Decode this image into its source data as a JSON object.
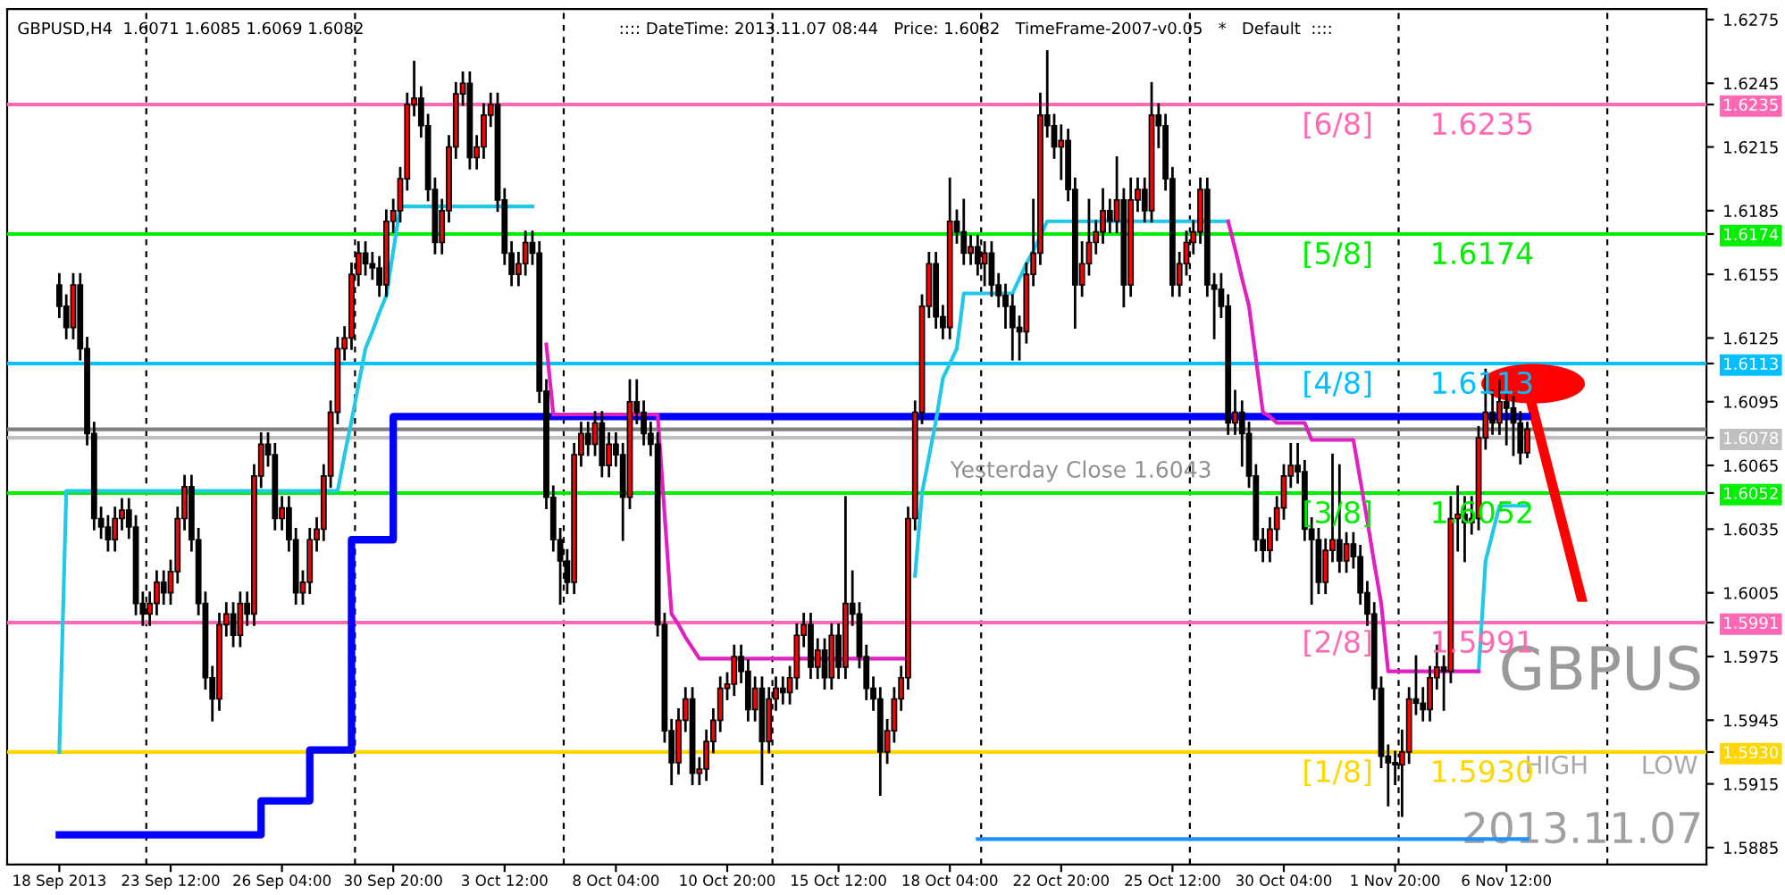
{
  "chart_data": {
    "type": "candlestick",
    "title": "GBPUSD,H4  1.6071 1.6085 1.6069 1.6082",
    "subtitle": ":::: DateTime: 2013.11.07 08:44   Price: 1.6082   TimeFrame-2007-v0.05   *   Default  ::::",
    "annotations": [
      "Yesterday Close 1.6043",
      "GBPUS",
      "HIGH",
      "LOW",
      "2013.11.07"
    ],
    "categories": [
      "18 Sep 2013",
      null,
      null,
      null,
      null,
      null,
      null,
      null,
      null,
      null,
      null,
      null,
      null,
      null,
      null,
      null,
      "23 Sep 12:00",
      null,
      null,
      null,
      null,
      null,
      null,
      null,
      null,
      null,
      null,
      null,
      null,
      null,
      null,
      null,
      "26 Sep 04:00",
      null,
      null,
      null,
      null,
      null,
      null,
      null,
      null,
      null,
      null,
      null,
      null,
      null,
      null,
      null,
      "30 Sep 20:00",
      null,
      null,
      null,
      null,
      null,
      null,
      null,
      null,
      null,
      null,
      null,
      null,
      null,
      null,
      null,
      "3 Oct 12:00",
      null,
      null,
      null,
      null,
      null,
      null,
      null,
      null,
      null,
      null,
      null,
      null,
      null,
      null,
      null,
      "8 Oct 04:00",
      null,
      null,
      null,
      null,
      null,
      null,
      null,
      null,
      null,
      null,
      null,
      null,
      null,
      null,
      null,
      "10 Oct 20:00",
      null,
      null,
      null,
      null,
      null,
      null,
      null,
      null,
      null,
      null,
      null,
      null,
      null,
      null,
      null,
      "15 Oct 12:00",
      null,
      null,
      null,
      null,
      null,
      null,
      null,
      null,
      null,
      null,
      null,
      null,
      null,
      null,
      null,
      "18 Oct 04:00",
      null,
      null,
      null,
      null,
      null,
      null,
      null,
      null,
      null,
      null,
      null,
      null,
      null,
      null,
      null,
      "22 Oct 20:00",
      null,
      null,
      null,
      null,
      null,
      null,
      null,
      null,
      null,
      null,
      null,
      null,
      null,
      null,
      null,
      "25 Oct 12:00",
      null,
      null,
      null,
      null,
      null,
      null,
      null,
      null,
      null,
      null,
      null,
      null,
      null,
      null,
      null,
      "30 Oct 04:00",
      null,
      null,
      null,
      null,
      null,
      null,
      null,
      null,
      null,
      null,
      null,
      null,
      null,
      null,
      null,
      "1 Nov 20:00",
      null,
      null,
      null,
      null,
      null,
      null,
      null,
      null,
      null,
      null,
      null,
      null,
      null,
      null,
      null,
      "6 Nov 12:00",
      null,
      null,
      null
    ],
    "colors": [
      "#000000",
      "#000000",
      "#ff0000",
      "#000000",
      "#000000",
      "#000000",
      "#000000",
      "#000000",
      "#ff0000",
      "#ff0000",
      "#000000",
      "#000000",
      "#000000",
      "#ff0000",
      "#ff0000",
      "#000000",
      "#ff0000",
      "#ff0000",
      "#ff0000",
      "#000000",
      "#000000",
      "#000000",
      "#000000",
      "#ff0000",
      "#ff0000",
      "#000000",
      "#ff0000",
      "#000000",
      "#ff0000",
      "#ff0000",
      "#000000",
      "#000000",
      "#ff0000",
      "#000000",
      "#000000",
      "#ff0000",
      "#ff0000",
      "#ff0000",
      "#ff0000",
      "#ff0000",
      "#ff0000",
      "#ff0000",
      "#ff0000",
      "#ff0000",
      "#000000",
      "#000000",
      "#000000",
      "#ff0000",
      "#ff0000",
      "#ff0000",
      "#ff0000",
      "#ff0000",
      "#000000",
      "#000000",
      "#000000",
      "#ff0000",
      "#ff0000",
      "#ff0000",
      "#ff0000",
      "#000000",
      "#ff0000",
      "#ff0000",
      "#ff0000",
      "#000000",
      "#000000",
      "#000000",
      "#ff0000",
      "#ff0000",
      "#000000",
      "#000000",
      "#000000",
      "#000000",
      "#000000",
      "#000000",
      "#ff0000",
      "#ff0000",
      "#000000",
      "#ff0000",
      "#000000",
      "#ff0000",
      "#000000",
      "#000000",
      "#ff0000",
      "#000000",
      "#000000",
      "#000000",
      "#000000",
      "#000000",
      "#000000",
      "#ff0000",
      "#ff0000",
      "#000000",
      "#ff0000",
      "#ff0000",
      "#ff0000",
      "#ff0000",
      "#ff0000",
      "#ff0000",
      "#000000",
      "#000000",
      "#ff0000",
      "#000000",
      "#ff0000",
      "#ff0000",
      "#000000",
      "#ff0000",
      "#ff0000",
      "#ff0000",
      "#000000",
      "#ff0000",
      "#000000",
      "#ff0000",
      "#000000",
      "#ff0000",
      "#000000",
      "#000000",
      "#000000",
      "#000000",
      "#000000",
      "#ff0000",
      "#ff0000",
      "#ff0000",
      "#ff0000",
      "#ff0000",
      "#ff0000",
      "#ff0000",
      "#000000",
      "#000000",
      "#ff0000",
      "#000000",
      "#000000",
      "#ff0000",
      "#000000",
      "#ff0000",
      "#000000",
      "#000000",
      "#000000",
      "#000000",
      "#000000",
      "#ff0000",
      "#ff0000",
      "#ff0000",
      "#000000",
      "#000000",
      "#ff0000",
      "#000000",
      "#000000",
      "#ff0000",
      "#ff0000",
      "#ff0000",
      "#ff0000",
      "#000000",
      "#ff0000",
      "#000000",
      "#ff0000",
      "#ff0000",
      "#000000",
      "#ff0000",
      "#000000",
      "#000000",
      "#000000",
      "#ff0000",
      "#ff0000",
      "#ff0000",
      "#ff0000",
      "#000000",
      "#000000",
      "#000000",
      "#000000",
      "#ff0000",
      "#000000",
      "#000000",
      "#000000",
      "#000000",
      "#ff0000",
      "#ff0000",
      "#ff0000",
      "#ff0000",
      "#000000",
      "#000000",
      "#000000",
      "#000000",
      "#ff0000",
      "#ff0000",
      "#000000",
      "#ff0000",
      "#000000",
      "#000000",
      "#000000",
      "#000000",
      "#000000",
      "#000000",
      "#000000",
      "#ff0000",
      "#ff0000",
      "#000000",
      "#000000",
      "#ff0000",
      "#ff0000",
      "#000000",
      "#ff0000",
      "#ff0000",
      "#000000",
      "#ff0000",
      "#ff0000",
      "#ff0000",
      "#000000",
      "#ff0000",
      "#000000",
      "#000000",
      "#000000",
      "#ff0000"
    ],
    "ohlc": [
      [
        1.615,
        1.6155,
        1.6135,
        1.614
      ],
      [
        1.614,
        1.6145,
        1.6125,
        1.613
      ],
      [
        1.613,
        1.6155,
        1.6125,
        1.615
      ],
      [
        1.615,
        1.6155,
        1.6115,
        1.612
      ],
      [
        1.612,
        1.6125,
        1.6075,
        1.608
      ],
      [
        1.608,
        1.6085,
        1.6035,
        1.604
      ],
      [
        1.604,
        1.6045,
        1.6031,
        1.6036
      ],
      [
        1.6036,
        1.6041,
        1.6025,
        1.603
      ],
      [
        1.603,
        1.6045,
        1.6025,
        1.604
      ],
      [
        1.604,
        1.6049,
        1.6035,
        1.6044
      ],
      [
        1.6044,
        1.6049,
        1.6031,
        1.6036
      ],
      [
        1.6036,
        1.6041,
        1.5995,
        1.6
      ],
      [
        1.6,
        1.6005,
        1.599,
        1.5995
      ],
      [
        1.5995,
        1.6005,
        1.599,
        1.6
      ],
      [
        1.6,
        1.6015,
        1.5995,
        1.601
      ],
      [
        1.601,
        1.6015,
        1.6,
        1.6005
      ],
      [
        1.6005,
        1.602,
        1.6,
        1.6015
      ],
      [
        1.6015,
        1.6045,
        1.601,
        1.604
      ],
      [
        1.604,
        1.606,
        1.6035,
        1.6055
      ],
      [
        1.6055,
        1.606,
        1.6025,
        1.603
      ],
      [
        1.603,
        1.6035,
        1.5995,
        1.6
      ],
      [
        1.6,
        1.6005,
        1.596,
        1.5965
      ],
      [
        1.5965,
        1.597,
        1.5945,
        1.5955
      ],
      [
        1.5955,
        1.5995,
        1.595,
        1.599
      ],
      [
        1.599,
        1.6,
        1.5985,
        1.5995
      ],
      [
        1.5995,
        1.6,
        1.598,
        1.5985
      ],
      [
        1.5985,
        1.6005,
        1.598,
        1.6
      ],
      [
        1.6,
        1.6005,
        1.599,
        1.5995
      ],
      [
        1.5995,
        1.6065,
        1.599,
        1.606
      ],
      [
        1.606,
        1.608,
        1.6055,
        1.6075
      ],
      [
        1.6075,
        1.608,
        1.6065,
        1.607
      ],
      [
        1.607,
        1.6075,
        1.6035,
        1.604
      ],
      [
        1.604,
        1.605,
        1.6035,
        1.6045
      ],
      [
        1.6045,
        1.605,
        1.6025,
        1.603
      ],
      [
        1.603,
        1.6035,
        1.6,
        1.6005
      ],
      [
        1.6005,
        1.6015,
        1.6,
        1.601
      ],
      [
        1.601,
        1.6035,
        1.6005,
        1.603
      ],
      [
        1.603,
        1.604,
        1.6025,
        1.6035
      ],
      [
        1.6035,
        1.6065,
        1.603,
        1.606
      ],
      [
        1.606,
        1.6095,
        1.6055,
        1.609
      ],
      [
        1.609,
        1.6125,
        1.6085,
        1.612
      ],
      [
        1.612,
        1.613,
        1.6115,
        1.6125
      ],
      [
        1.6125,
        1.616,
        1.612,
        1.6155
      ],
      [
        1.6155,
        1.617,
        1.615,
        1.6165
      ],
      [
        1.6165,
        1.617,
        1.6155,
        1.616
      ],
      [
        1.616,
        1.6165,
        1.6153,
        1.6158
      ],
      [
        1.6158,
        1.6163,
        1.6145,
        1.615
      ],
      [
        1.615,
        1.6185,
        1.6145,
        1.618
      ],
      [
        1.618,
        1.619,
        1.6175,
        1.6185
      ],
      [
        1.6185,
        1.6205,
        1.618,
        1.62
      ],
      [
        1.62,
        1.624,
        1.6195,
        1.6235
      ],
      [
        1.6235,
        1.6255,
        1.623,
        1.6238
      ],
      [
        1.6238,
        1.6243,
        1.622,
        1.6225
      ],
      [
        1.6225,
        1.623,
        1.619,
        1.6195
      ],
      [
        1.6195,
        1.62,
        1.6165,
        1.617
      ],
      [
        1.617,
        1.619,
        1.6165,
        1.6185
      ],
      [
        1.6185,
        1.622,
        1.618,
        1.6215
      ],
      [
        1.6215,
        1.6245,
        1.621,
        1.624
      ],
      [
        1.624,
        1.625,
        1.6235,
        1.6245
      ],
      [
        1.6245,
        1.625,
        1.6205,
        1.621
      ],
      [
        1.621,
        1.622,
        1.6205,
        1.6215
      ],
      [
        1.6215,
        1.6235,
        1.621,
        1.623
      ],
      [
        1.623,
        1.624,
        1.6225,
        1.6235
      ],
      [
        1.6235,
        1.624,
        1.6185,
        1.619
      ],
      [
        1.619,
        1.6195,
        1.616,
        1.6165
      ],
      [
        1.6165,
        1.617,
        1.615,
        1.6155
      ],
      [
        1.6155,
        1.6165,
        1.615,
        1.616
      ],
      [
        1.616,
        1.6175,
        1.6155,
        1.617
      ],
      [
        1.617,
        1.6175,
        1.616,
        1.6165
      ],
      [
        1.6165,
        1.617,
        1.6095,
        1.61
      ],
      [
        1.61,
        1.6105,
        1.6045,
        1.605
      ],
      [
        1.605,
        1.6055,
        1.6025,
        1.603
      ],
      [
        1.603,
        1.6035,
        1.6,
        1.602
      ],
      [
        1.602,
        1.6025,
        1.6005,
        1.601
      ],
      [
        1.601,
        1.6075,
        1.6005,
        1.607
      ],
      [
        1.607,
        1.6085,
        1.6065,
        1.608
      ],
      [
        1.608,
        1.6085,
        1.607,
        1.6075
      ],
      [
        1.6075,
        1.609,
        1.607,
        1.6085
      ],
      [
        1.6085,
        1.609,
        1.606,
        1.6065
      ],
      [
        1.6065,
        1.608,
        1.606,
        1.6075
      ],
      [
        1.6075,
        1.608,
        1.6065,
        1.607
      ],
      [
        1.607,
        1.6075,
        1.603,
        1.605
      ],
      [
        1.605,
        1.6105,
        1.6045,
        1.6095
      ],
      [
        1.6095,
        1.6105,
        1.6085,
        1.609
      ],
      [
        1.609,
        1.6095,
        1.6075,
        1.608
      ],
      [
        1.608,
        1.6085,
        1.607,
        1.6075
      ],
      [
        1.6075,
        1.608,
        1.5985,
        1.599
      ],
      [
        1.599,
        1.5995,
        1.5935,
        1.594
      ],
      [
        1.594,
        1.5945,
        1.5915,
        1.5925
      ],
      [
        1.5925,
        1.595,
        1.592,
        1.5945
      ],
      [
        1.5945,
        1.596,
        1.594,
        1.5955
      ],
      [
        1.5955,
        1.596,
        1.5915,
        1.592
      ],
      [
        1.592,
        1.5927,
        1.5915,
        1.5922
      ],
      [
        1.5922,
        1.594,
        1.5917,
        1.5935
      ],
      [
        1.5935,
        1.595,
        1.593,
        1.5945
      ],
      [
        1.5945,
        1.5965,
        1.594,
        1.596
      ],
      [
        1.596,
        1.5967,
        1.5955,
        1.5962
      ],
      [
        1.5962,
        1.598,
        1.5957,
        1.5975
      ],
      [
        1.5975,
        1.598,
        1.5963,
        1.5968
      ],
      [
        1.5968,
        1.5973,
        1.5945,
        1.595
      ],
      [
        1.595,
        1.5965,
        1.5945,
        1.596
      ],
      [
        1.596,
        1.5965,
        1.5915,
        1.5935
      ],
      [
        1.5935,
        1.596,
        1.593,
        1.5955
      ],
      [
        1.5955,
        1.5965,
        1.595,
        1.596
      ],
      [
        1.596,
        1.5965,
        1.5953,
        1.5958
      ],
      [
        1.5958,
        1.597,
        1.5953,
        1.5965
      ],
      [
        1.5965,
        1.599,
        1.596,
        1.5985
      ],
      [
        1.5985,
        1.5995,
        1.598,
        1.599
      ],
      [
        1.599,
        1.5995,
        1.5965,
        1.597
      ],
      [
        1.597,
        1.5983,
        1.5965,
        1.5978
      ],
      [
        1.5978,
        1.5983,
        1.596,
        1.5965
      ],
      [
        1.5965,
        1.599,
        1.596,
        1.5985
      ],
      [
        1.5985,
        1.599,
        1.5965,
        1.597
      ],
      [
        1.597,
        1.605,
        1.5965,
        1.6
      ],
      [
        1.6,
        1.6015,
        1.599,
        1.5995
      ],
      [
        1.5995,
        1.6,
        1.597,
        1.5975
      ],
      [
        1.5975,
        1.598,
        1.5955,
        1.596
      ],
      [
        1.596,
        1.5965,
        1.595,
        1.5955
      ],
      [
        1.5955,
        1.596,
        1.591,
        1.593
      ],
      [
        1.593,
        1.5945,
        1.5925,
        1.594
      ],
      [
        1.594,
        1.596,
        1.5935,
        1.5955
      ],
      [
        1.5955,
        1.597,
        1.595,
        1.5965
      ],
      [
        1.5965,
        1.6045,
        1.596,
        1.604
      ],
      [
        1.604,
        1.6095,
        1.6035,
        1.609
      ],
      [
        1.609,
        1.6145,
        1.6085,
        1.614
      ],
      [
        1.614,
        1.6165,
        1.6135,
        1.616
      ],
      [
        1.616,
        1.6165,
        1.613,
        1.6135
      ],
      [
        1.6135,
        1.614,
        1.6125,
        1.613
      ],
      [
        1.613,
        1.62,
        1.6125,
        1.618
      ],
      [
        1.618,
        1.6185,
        1.617,
        1.6175
      ],
      [
        1.6175,
        1.619,
        1.616,
        1.6165
      ],
      [
        1.6165,
        1.6173,
        1.616,
        1.6168
      ],
      [
        1.6168,
        1.6173,
        1.6155,
        1.616
      ],
      [
        1.616,
        1.617,
        1.615,
        1.6165
      ],
      [
        1.6165,
        1.617,
        1.6145,
        1.615
      ],
      [
        1.615,
        1.6155,
        1.614,
        1.6145
      ],
      [
        1.6145,
        1.615,
        1.613,
        1.614
      ],
      [
        1.614,
        1.6145,
        1.6115,
        1.613
      ],
      [
        1.613,
        1.6135,
        1.6115,
        1.6128
      ],
      [
        1.6128,
        1.616,
        1.6123,
        1.6155
      ],
      [
        1.6155,
        1.619,
        1.615,
        1.6165
      ],
      [
        1.6165,
        1.624,
        1.616,
        1.623
      ],
      [
        1.623,
        1.626,
        1.622,
        1.6225
      ],
      [
        1.6225,
        1.623,
        1.621,
        1.6215
      ],
      [
        1.6215,
        1.6225,
        1.62,
        1.6218
      ],
      [
        1.6218,
        1.6223,
        1.619,
        1.6195
      ],
      [
        1.6195,
        1.62,
        1.613,
        1.615
      ],
      [
        1.615,
        1.617,
        1.6145,
        1.616
      ],
      [
        1.616,
        1.619,
        1.6155,
        1.617
      ],
      [
        1.617,
        1.618,
        1.6165,
        1.6175
      ],
      [
        1.6175,
        1.6195,
        1.617,
        1.6185
      ],
      [
        1.6185,
        1.619,
        1.6175,
        1.618
      ],
      [
        1.618,
        1.621,
        1.6175,
        1.619
      ],
      [
        1.619,
        1.6195,
        1.614,
        1.615
      ],
      [
        1.615,
        1.62,
        1.6145,
        1.619
      ],
      [
        1.619,
        1.62,
        1.6185,
        1.6195
      ],
      [
        1.6195,
        1.62,
        1.618,
        1.6185
      ],
      [
        1.6185,
        1.6245,
        1.618,
        1.623
      ],
      [
        1.623,
        1.6235,
        1.6215,
        1.6225
      ],
      [
        1.6225,
        1.623,
        1.6195,
        1.62
      ],
      [
        1.62,
        1.6205,
        1.6145,
        1.615
      ],
      [
        1.615,
        1.6165,
        1.6145,
        1.616
      ],
      [
        1.616,
        1.6175,
        1.6155,
        1.617
      ],
      [
        1.617,
        1.618,
        1.6165,
        1.6175
      ],
      [
        1.6175,
        1.62,
        1.617,
        1.6195
      ],
      [
        1.6195,
        1.62,
        1.6145,
        1.615
      ],
      [
        1.615,
        1.6155,
        1.6125,
        1.6148
      ],
      [
        1.6148,
        1.6155,
        1.6135,
        1.614
      ],
      [
        1.614,
        1.6145,
        1.608,
        1.6085
      ],
      [
        1.6085,
        1.61,
        1.608,
        1.609
      ],
      [
        1.609,
        1.6095,
        1.6065,
        1.608
      ],
      [
        1.608,
        1.6085,
        1.6055,
        1.606
      ],
      [
        1.606,
        1.6065,
        1.6025,
        1.603
      ],
      [
        1.603,
        1.6035,
        1.602,
        1.6025
      ],
      [
        1.6025,
        1.604,
        1.602,
        1.6035
      ],
      [
        1.6035,
        1.605,
        1.603,
        1.6045
      ],
      [
        1.6045,
        1.6065,
        1.604,
        1.606
      ],
      [
        1.606,
        1.6075,
        1.6055,
        1.6065
      ],
      [
        1.6065,
        1.6075,
        1.6057,
        1.6062
      ],
      [
        1.6062,
        1.6067,
        1.603,
        1.6035
      ],
      [
        1.6035,
        1.604,
        1.6,
        1.603
      ],
      [
        1.603,
        1.6035,
        1.6005,
        1.601
      ],
      [
        1.601,
        1.603,
        1.6005,
        1.6025
      ],
      [
        1.6025,
        1.607,
        1.602,
        1.603
      ],
      [
        1.603,
        1.6065,
        1.6015,
        1.602
      ],
      [
        1.602,
        1.6033,
        1.6015,
        1.6028
      ],
      [
        1.6028,
        1.6033,
        1.6017,
        1.6022
      ],
      [
        1.6022,
        1.6027,
        1.6,
        1.6005
      ],
      [
        1.6005,
        1.601,
        1.599,
        1.5995
      ],
      [
        1.5995,
        1.6,
        1.5955,
        1.596
      ],
      [
        1.596,
        1.5965,
        1.5923,
        1.5928
      ],
      [
        1.5928,
        1.5933,
        1.5905,
        1.5925
      ],
      [
        1.5925,
        1.593,
        1.5915,
        1.5924
      ],
      [
        1.5924,
        1.594,
        1.59,
        1.593
      ],
      [
        1.593,
        1.596,
        1.5925,
        1.5955
      ],
      [
        1.5955,
        1.5975,
        1.5948,
        1.5953
      ],
      [
        1.5953,
        1.596,
        1.5945,
        1.595
      ],
      [
        1.595,
        1.597,
        1.5945,
        1.5965
      ],
      [
        1.5965,
        1.598,
        1.596,
        1.597
      ],
      [
        1.597,
        1.5975,
        1.595,
        1.5968
      ],
      [
        1.5968,
        1.605,
        1.5963,
        1.604
      ],
      [
        1.604,
        1.6055,
        1.6025,
        1.6042
      ],
      [
        1.6042,
        1.605,
        1.602,
        1.6038
      ],
      [
        1.6038,
        1.605,
        1.6033,
        1.604
      ],
      [
        1.604,
        1.6083,
        1.6035,
        1.6078
      ],
      [
        1.6078,
        1.611,
        1.6073,
        1.609
      ],
      [
        1.609,
        1.61,
        1.608,
        1.6085
      ],
      [
        1.6085,
        1.6105,
        1.608,
        1.6095
      ],
      [
        1.6095,
        1.61,
        1.6075,
        1.6092
      ],
      [
        1.6092,
        1.6097,
        1.607,
        1.6085
      ],
      [
        1.6085,
        1.609,
        1.6066,
        1.6071
      ],
      [
        1.6071,
        1.6085,
        1.6069,
        1.6082
      ]
    ],
    "series": [
      {
        "type": "step",
        "color": "#0000ff",
        "values": [
          1.5891,
          1.5891,
          1.5891,
          1.5891,
          1.5891,
          1.5891,
          1.5891,
          1.5891,
          1.5891,
          1.5891,
          1.5891,
          1.5891,
          1.5891,
          1.5891,
          1.5891,
          1.5891,
          1.5891,
          1.5891,
          1.5891,
          1.5891,
          1.5891,
          1.5891,
          1.5891,
          1.5891,
          1.5891,
          1.5891,
          1.5891,
          1.5891,
          1.5891,
          1.5907,
          1.5907,
          1.5907,
          1.5907,
          1.5907,
          1.5907,
          1.5907,
          1.5931,
          1.5931,
          1.5931,
          1.5931,
          1.5931,
          1.5931,
          1.603,
          1.603,
          1.603,
          1.603,
          1.603,
          1.603,
          1.6088,
          1.6088,
          1.6088,
          1.6088,
          1.6088,
          1.6088,
          1.6088,
          1.6088,
          1.6088,
          1.6088,
          1.6088,
          1.6088,
          1.6088,
          1.6088,
          1.6088,
          1.6088,
          1.6088,
          1.6088,
          1.6088,
          1.6088,
          1.6088,
          1.6088,
          1.6088,
          1.6088,
          1.6088,
          1.6088,
          1.6088,
          1.6088,
          1.6088,
          1.6088,
          1.6088,
          1.6088,
          1.6088,
          1.6088,
          1.6088,
          1.6088,
          1.6088,
          1.6088,
          1.6088,
          1.6088,
          1.6088,
          1.6088,
          1.6088,
          1.6088,
          1.6088,
          1.6088,
          1.6088,
          1.6088,
          1.6088,
          1.6088,
          1.6088,
          1.6088,
          1.6088,
          1.6088,
          1.6088,
          1.6088,
          1.6088,
          1.6088,
          1.6088,
          1.6088,
          1.6088,
          1.6088,
          1.6088,
          1.6088,
          1.6088,
          1.6088,
          1.6088,
          1.6088,
          1.6088,
          1.6088,
          1.6088,
          1.6088,
          1.6088,
          1.6088,
          1.6088,
          1.6088,
          1.6088,
          1.6088,
          1.6088,
          1.6088,
          1.6088,
          1.6088,
          1.6088,
          1.6088,
          1.6088,
          1.6088,
          1.6088,
          1.6088,
          1.6088,
          1.6088,
          1.6088,
          1.6088,
          1.6088,
          1.6088,
          1.6088,
          1.6088,
          1.6088,
          1.6088,
          1.6088,
          1.6088,
          1.6088,
          1.6088,
          1.6088,
          1.6088,
          1.6088,
          1.6088,
          1.6088,
          1.6088,
          1.6088,
          1.6088,
          1.6088,
          1.6088,
          1.6088,
          1.6088,
          1.6088,
          1.6088,
          1.6088,
          1.6088,
          1.6088,
          1.6088,
          1.6088,
          1.6088,
          1.6088,
          1.6088,
          1.6088,
          1.6088,
          1.6088,
          1.6088,
          1.6088,
          1.6088,
          1.6088,
          1.6088,
          1.6088,
          1.6088,
          1.6088,
          1.6088,
          1.6088,
          1.6088,
          1.6088,
          1.6088,
          1.6088,
          1.6088,
          1.6088,
          1.6088,
          1.6088,
          1.6088,
          1.6088,
          1.6088,
          1.6088,
          1.6088,
          1.6088,
          1.6088,
          1.6088,
          1.6088,
          1.6088,
          1.6088,
          1.6088,
          1.6088,
          1.6088,
          1.6088,
          1.6088,
          1.6088,
          1.6088,
          1.6088
        ]
      },
      {
        "type": "line",
        "color": "#22c8e8",
        "values": [
          1.593,
          1.6053,
          1.6053,
          1.6053,
          1.6053,
          1.6053,
          1.6053,
          1.6053,
          1.6053,
          1.6053,
          1.6053,
          1.6053,
          1.6053,
          1.6053,
          1.6053,
          1.6053,
          1.6053,
          1.6053,
          1.6053,
          1.6053,
          1.6053,
          1.6053,
          1.6053,
          1.6053,
          1.6053,
          1.6053,
          1.6053,
          1.6053,
          1.6053,
          1.6053,
          1.6053,
          1.6053,
          1.6053,
          1.6053,
          1.6053,
          1.6053,
          1.6053,
          1.6053,
          1.6053,
          1.6053,
          1.6053,
          1.607,
          1.6086,
          1.6103,
          1.612,
          1.6128,
          1.6137,
          1.6145,
          1.6166,
          1.6187,
          1.6187,
          1.6187,
          1.6187,
          1.6187,
          1.6187,
          1.6187,
          1.6187,
          1.6187,
          1.6187,
          1.6187,
          1.6187,
          1.6187,
          1.6187,
          1.6187,
          1.6187,
          1.6187,
          1.6187,
          1.6187,
          1.6187,
          null,
          null,
          null,
          null,
          null,
          null,
          null,
          null,
          null,
          null,
          null,
          null,
          null,
          null,
          null,
          null,
          null,
          null,
          null,
          null,
          null,
          null,
          null,
          null,
          null,
          null,
          null,
          null,
          null,
          null,
          null,
          null,
          null,
          null,
          null,
          null,
          null,
          null,
          null,
          null,
          null,
          null,
          null,
          null,
          null,
          null,
          null,
          null,
          null,
          null,
          null,
          null,
          null,
          null,
          1.6013,
          1.6052,
          1.6069,
          1.6086,
          1.6106,
          1.6113,
          1.612,
          1.6146,
          1.6146,
          1.6146,
          1.6146,
          1.6146,
          1.6146,
          1.6146,
          1.6146,
          1.6153,
          1.616,
          1.6166,
          1.6173,
          1.618,
          1.618,
          1.618,
          1.618,
          1.618,
          1.618,
          1.618,
          1.618,
          1.618,
          1.618,
          1.618,
          1.618,
          1.618,
          1.618,
          1.618,
          1.618,
          1.618,
          1.618,
          1.618,
          1.618,
          1.618,
          1.618,
          1.618,
          1.618,
          1.618,
          1.618,
          1.618,
          null,
          null,
          null,
          null,
          null,
          null,
          null,
          null,
          null,
          null,
          null,
          null,
          null,
          null,
          null,
          null,
          null,
          null,
          null,
          null,
          null,
          null,
          null,
          null,
          null,
          null,
          null,
          null,
          null,
          null,
          null,
          null,
          null,
          null,
          null,
          1.5968,
          1.602,
          1.6033,
          1.6046,
          1.6046,
          1.6046,
          1.6046,
          1.6046
        ]
      },
      {
        "type": "line",
        "color": "#e020c0",
        "values": [
          null,
          null,
          null,
          null,
          null,
          null,
          null,
          null,
          null,
          null,
          null,
          null,
          null,
          null,
          null,
          null,
          null,
          null,
          null,
          null,
          null,
          null,
          null,
          null,
          null,
          null,
          null,
          null,
          null,
          null,
          null,
          null,
          null,
          null,
          null,
          null,
          null,
          null,
          null,
          null,
          null,
          null,
          null,
          null,
          null,
          null,
          null,
          null,
          null,
          null,
          null,
          null,
          null,
          null,
          null,
          null,
          null,
          null,
          null,
          null,
          null,
          null,
          null,
          null,
          null,
          null,
          null,
          null,
          null,
          null,
          1.6122,
          1.6089,
          1.6089,
          1.6089,
          1.6089,
          1.6089,
          1.6089,
          1.6089,
          1.6089,
          1.6089,
          1.6089,
          1.6089,
          1.6089,
          1.6089,
          1.6089,
          1.6089,
          1.6089,
          1.6042,
          1.5995,
          1.599,
          1.5984,
          1.5979,
          1.5974,
          1.5974,
          1.5974,
          1.5974,
          1.5974,
          1.5974,
          1.5974,
          1.5974,
          1.5974,
          1.5974,
          1.5974,
          1.5974,
          1.5974,
          1.5974,
          1.5974,
          1.5974,
          1.5974,
          1.5974,
          1.5974,
          1.5974,
          1.5974,
          1.5974,
          1.5974,
          1.5974,
          1.5974,
          1.5974,
          1.5974,
          1.5974,
          1.5974,
          1.5974,
          1.5974,
          null,
          null,
          null,
          null,
          null,
          null,
          null,
          null,
          null,
          null,
          null,
          null,
          null,
          null,
          null,
          null,
          null,
          null,
          null,
          null,
          null,
          null,
          null,
          null,
          null,
          null,
          null,
          null,
          null,
          null,
          null,
          null,
          null,
          null,
          null,
          null,
          null,
          null,
          null,
          null,
          null,
          null,
          null,
          null,
          null,
          1.618,
          1.6167,
          1.6153,
          1.614,
          1.6115,
          1.609,
          1.6088,
          1.6085,
          1.6085,
          1.6085,
          1.6085,
          1.6085,
          1.6077,
          1.6077,
          1.6077,
          1.6077,
          1.6077,
          1.6077,
          1.6077,
          1.6058,
          1.6039,
          1.6019,
          1.6,
          1.5968,
          1.5968,
          1.5968,
          1.5968,
          1.5968,
          1.5968,
          1.5968,
          1.5968,
          1.5968,
          1.5968,
          1.5968,
          1.5968,
          1.5968,
          1.5968,
          null,
          null,
          null,
          null,
          null,
          null,
          null
        ]
      },
      {
        "type": "line",
        "color": "#1e90ff",
        "values": [
          null,
          null,
          null,
          null,
          null,
          null,
          null,
          null,
          null,
          null,
          null,
          null,
          null,
          null,
          null,
          null,
          null,
          null,
          null,
          null,
          null,
          null,
          null,
          null,
          null,
          null,
          null,
          null,
          null,
          null,
          null,
          null,
          null,
          null,
          null,
          null,
          null,
          null,
          null,
          null,
          null,
          null,
          null,
          null,
          null,
          null,
          null,
          null,
          null,
          null,
          null,
          null,
          null,
          null,
          null,
          null,
          null,
          null,
          null,
          null,
          null,
          null,
          null,
          null,
          null,
          null,
          null,
          null,
          null,
          null,
          null,
          null,
          null,
          null,
          null,
          null,
          null,
          null,
          null,
          null,
          null,
          null,
          null,
          null,
          null,
          null,
          null,
          null,
          null,
          null,
          null,
          null,
          null,
          null,
          null,
          null,
          null,
          null,
          null,
          null,
          null,
          null,
          null,
          null,
          null,
          null,
          null,
          null,
          null,
          null,
          null,
          null,
          null,
          null,
          null,
          null,
          null,
          null,
          null,
          null,
          null,
          null,
          null,
          null,
          null,
          null,
          null,
          null,
          null,
          null,
          null,
          null,
          1.5889,
          1.5889,
          1.5889,
          1.5889,
          1.5889,
          1.5889,
          1.5889,
          1.5889,
          1.5889,
          1.5889,
          1.5889,
          1.5889,
          1.5889,
          1.5889,
          1.5889,
          1.5889,
          1.5889,
          1.5889,
          1.5889,
          1.5889,
          1.5889,
          1.5889,
          1.5889,
          1.5889,
          1.5889,
          1.5889,
          1.5889,
          1.5889,
          1.5889,
          1.5889,
          1.5889,
          1.5889,
          1.5889,
          1.5889,
          1.5889,
          1.5889,
          1.5889,
          1.5889,
          1.5889,
          1.5889,
          1.5889,
          1.5889,
          1.5889,
          1.5889,
          1.5889,
          1.5889,
          1.5889,
          1.5889,
          1.5889,
          1.5889,
          1.5889,
          1.5889,
          1.5889,
          1.5889,
          1.5889,
          1.5889,
          1.5889,
          1.5889,
          1.5889,
          1.5889,
          1.5889,
          1.5889,
          1.5889,
          1.5889,
          1.5889,
          1.5889,
          1.5889,
          1.5889,
          1.5889,
          1.5889,
          1.5889,
          1.5889,
          1.5889,
          1.5889,
          1.5889,
          1.5889,
          1.5889,
          1.5889,
          1.5889,
          1.5889
        ]
      }
    ],
    "ref_lines": [
      {
        "axis": "y",
        "value": 1.6235,
        "label": "[6/8]      1.6235",
        "color": "#ff69b4"
      },
      {
        "axis": "y",
        "value": 1.6174,
        "label": "[5/8]      1.6174",
        "color": "#00ee00"
      },
      {
        "axis": "y",
        "value": 1.6113,
        "label": "[4/8]      1.6113",
        "color": "#00bfff"
      },
      {
        "axis": "y",
        "value": 1.6052,
        "label": "[3/8]      1.6052",
        "color": "#00ee00"
      },
      {
        "axis": "y",
        "value": 1.5991,
        "label": "[2/8]      1.5991",
        "color": "#ff69b4"
      },
      {
        "axis": "y",
        "value": 1.593,
        "label": "[1/8]      1.5930",
        "color": "#ffd700"
      },
      {
        "axis": "y",
        "value": 1.6078,
        "color": "#c0c0c0"
      },
      {
        "axis": "y",
        "value": 1.6082,
        "color": "#808080"
      }
    ],
    "ylim": [
      1.5877,
      1.628
    ],
    "yticks": [
      1.5885,
      1.5915,
      {
        "value": 1.593,
        "label": "1.5930"
      },
      1.5945,
      1.5975,
      1.5991,
      1.6005,
      1.6035,
      1.6052,
      1.6065,
      1.6078,
      1.6095,
      1.6113,
      1.6125,
      1.6155,
      1.6174,
      1.6185,
      1.6215,
      1.6235,
      1.6245,
      1.6275
    ],
    "grid": false,
    "legend": false
  }
}
